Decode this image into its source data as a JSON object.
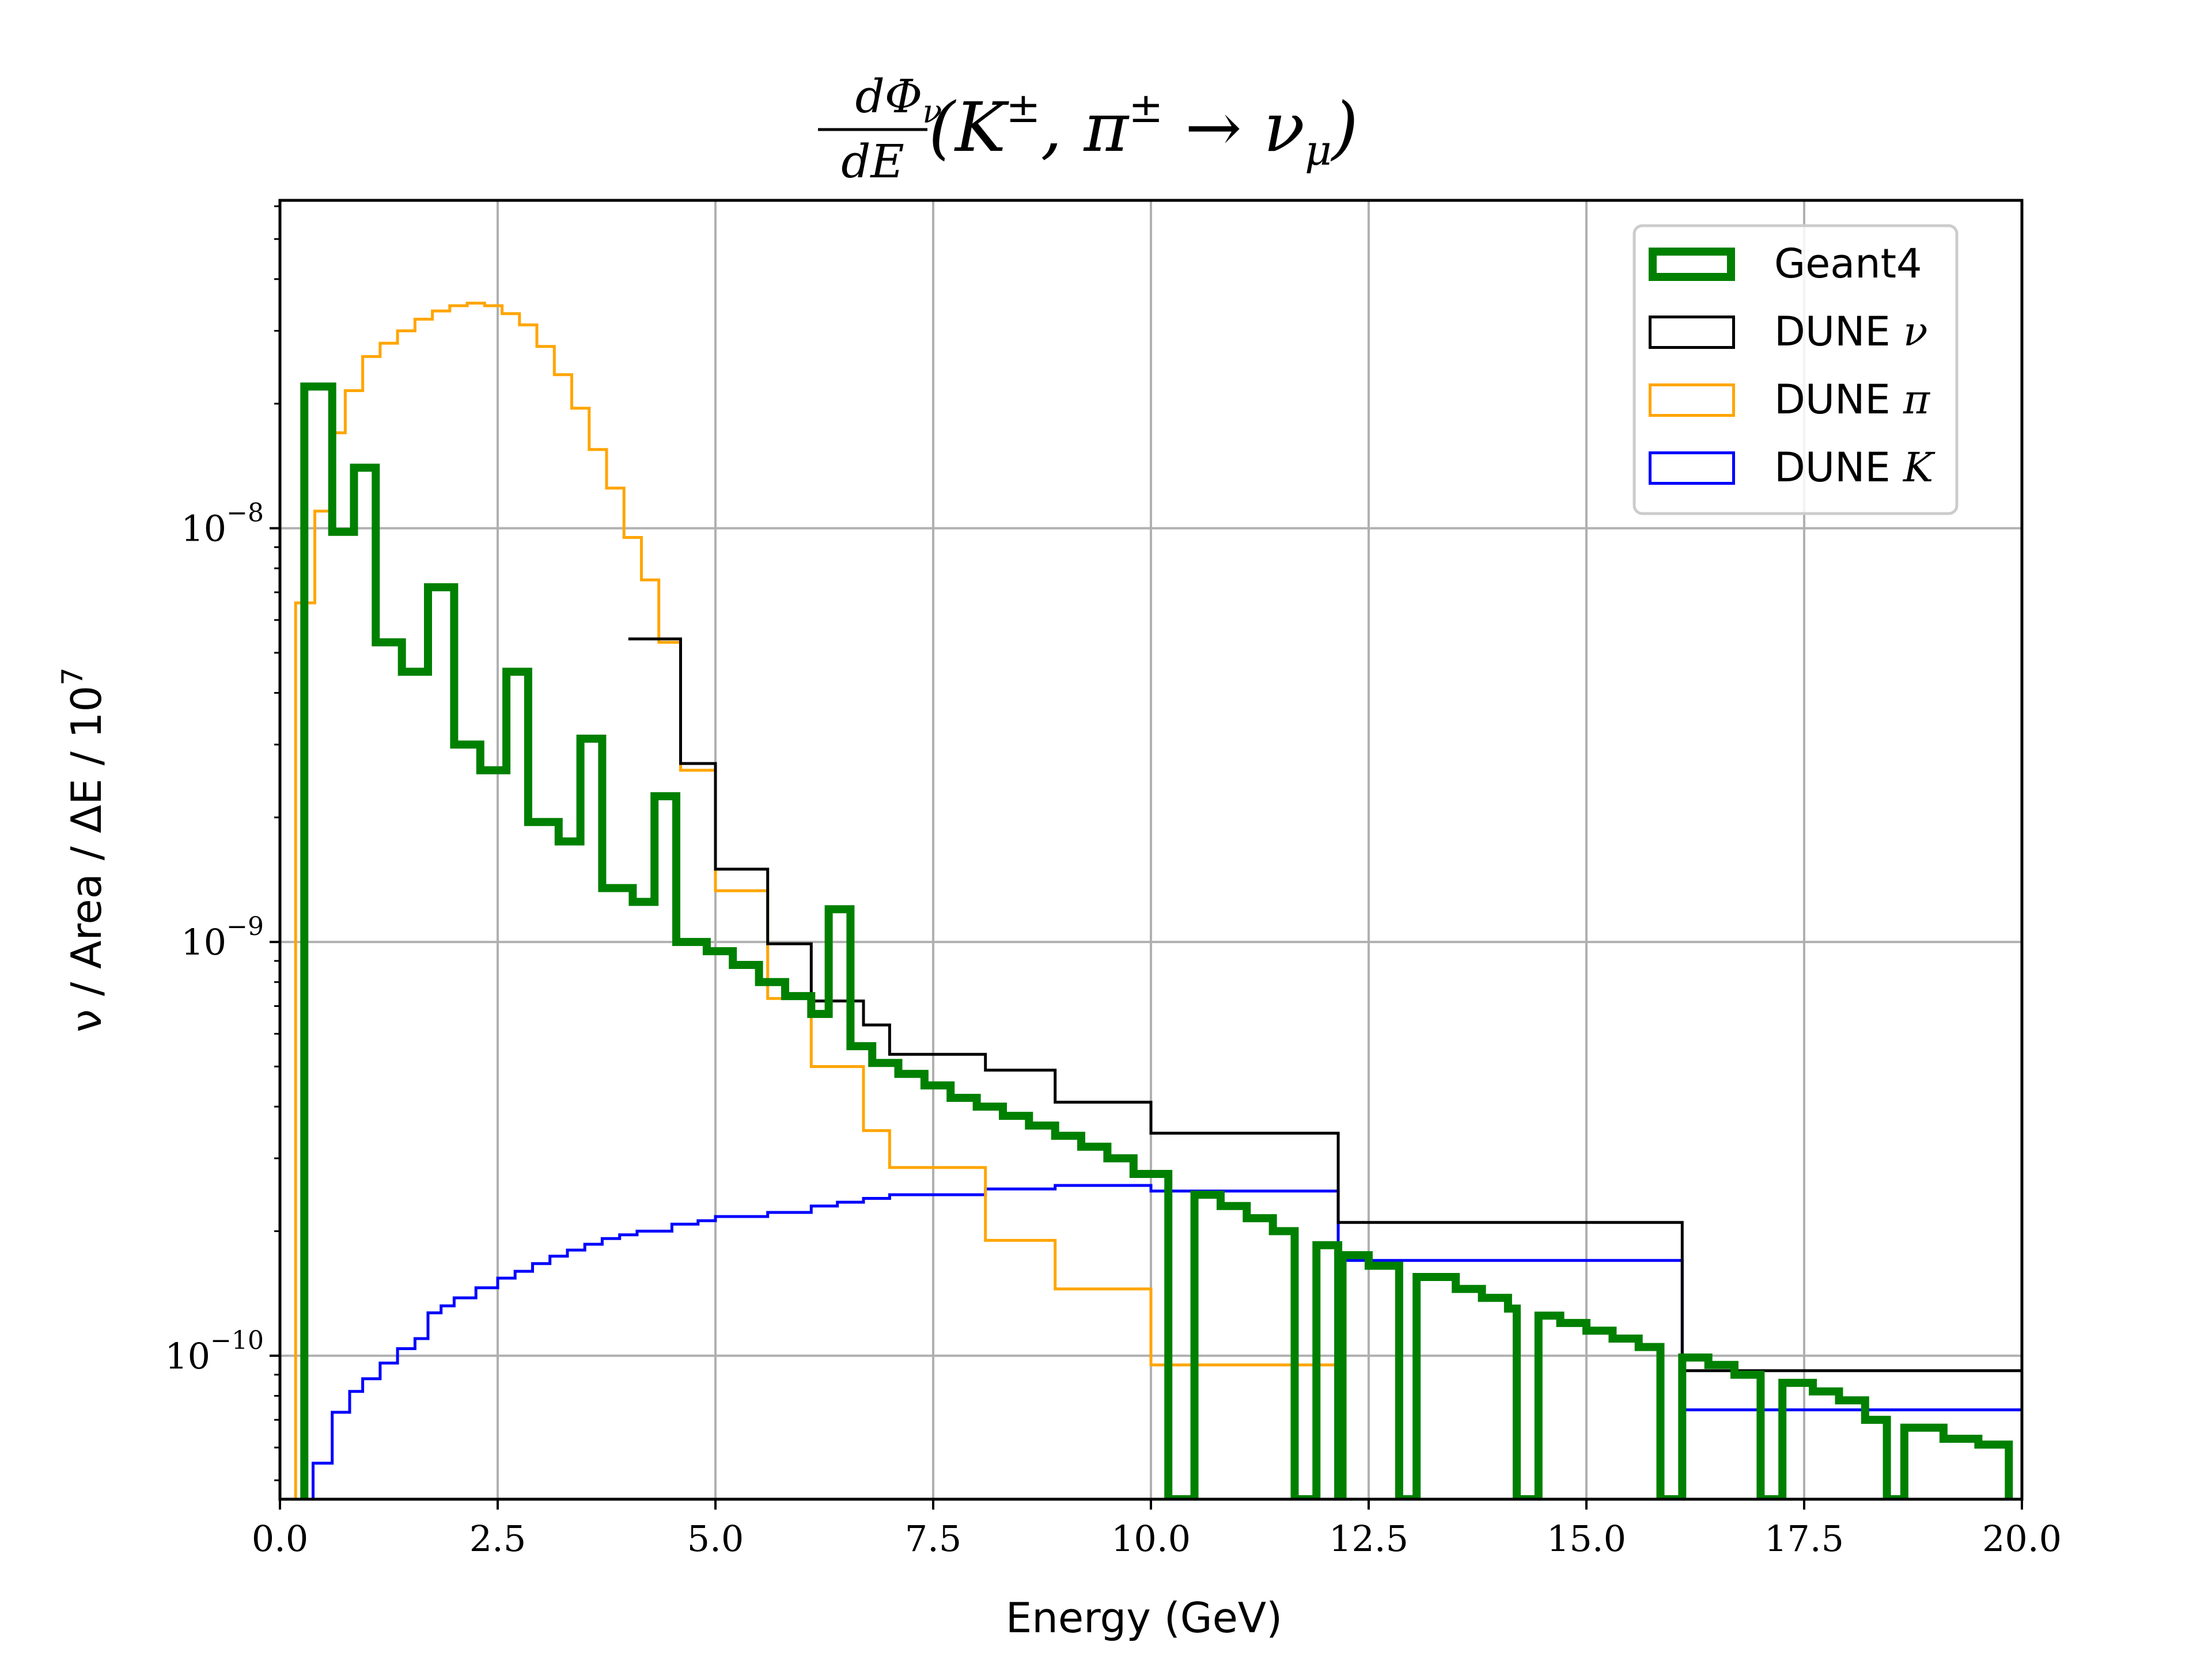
{
  "chart_data": {
    "type": "line",
    "title": {
      "frac_num": "dΦ",
      "frac_num_sub": "ν",
      "frac_den": "dE",
      "main": "(K",
      "main_sup": "±",
      "mid": ", π",
      "mid_sup": "±",
      "arrow": " → ν",
      "arrow_sub": "μ",
      "close": ")"
    },
    "xlabel": "Energy (GeV)",
    "ylabel": "ν / Area / ΔE / 10",
    "ylabel_sup": "7",
    "xlim": [
      0,
      20
    ],
    "ylim": [
      4.5e-11,
      6.2e-08
    ],
    "yscale": "log",
    "grid": true,
    "legend_position": "top-right",
    "xticks": [
      "0.0",
      "2.5",
      "5.0",
      "7.5",
      "10.0",
      "12.5",
      "15.0",
      "17.5",
      "20.0"
    ],
    "yticks": [
      {
        "value": 1e-08,
        "base": "10",
        "exp": "−8"
      },
      {
        "value": 1e-09,
        "base": "10",
        "exp": "−9"
      },
      {
        "value": 1e-10,
        "base": "10",
        "exp": "−10"
      }
    ],
    "series": [
      {
        "name": "Geant4",
        "legend_math": "",
        "color": "#008000",
        "width": 14,
        "points": [
          [
            0.28,
            4.5e-11
          ],
          [
            0.28,
            2.2e-08
          ],
          [
            0.6,
            2.2e-08
          ],
          [
            0.6,
            9.8e-09
          ],
          [
            0.85,
            9.8e-09
          ],
          [
            0.85,
            1.4e-08
          ],
          [
            1.1,
            1.4e-08
          ],
          [
            1.1,
            5.3e-09
          ],
          [
            1.4,
            5.3e-09
          ],
          [
            1.4,
            4.5e-09
          ],
          [
            1.7,
            4.5e-09
          ],
          [
            1.7,
            7.2e-09
          ],
          [
            2.0,
            7.2e-09
          ],
          [
            2.0,
            3e-09
          ],
          [
            2.3,
            3e-09
          ],
          [
            2.3,
            2.6e-09
          ],
          [
            2.6,
            2.6e-09
          ],
          [
            2.6,
            4.5e-09
          ],
          [
            2.85,
            4.5e-09
          ],
          [
            2.85,
            1.95e-09
          ],
          [
            3.2,
            1.95e-09
          ],
          [
            3.2,
            1.75e-09
          ],
          [
            3.45,
            1.75e-09
          ],
          [
            3.45,
            3.1e-09
          ],
          [
            3.7,
            3.1e-09
          ],
          [
            3.7,
            1.35e-09
          ],
          [
            4.05,
            1.35e-09
          ],
          [
            4.05,
            1.25e-09
          ],
          [
            4.3,
            1.25e-09
          ],
          [
            4.3,
            2.25e-09
          ],
          [
            4.55,
            2.25e-09
          ],
          [
            4.55,
            1e-09
          ],
          [
            4.9,
            1e-09
          ],
          [
            4.9,
            9.5e-10
          ],
          [
            5.2,
            9.5e-10
          ],
          [
            5.2,
            8.8e-10
          ],
          [
            5.5,
            8.8e-10
          ],
          [
            5.5,
            8e-10
          ],
          [
            5.8,
            8e-10
          ],
          [
            5.8,
            7.4e-10
          ],
          [
            6.1,
            7.4e-10
          ],
          [
            6.1,
            6.7e-10
          ],
          [
            6.3,
            6.7e-10
          ],
          [
            6.3,
            1.2e-09
          ],
          [
            6.55,
            1.2e-09
          ],
          [
            6.55,
            5.6e-10
          ],
          [
            6.8,
            5.6e-10
          ],
          [
            6.8,
            5.1e-10
          ],
          [
            7.1,
            5.1e-10
          ],
          [
            7.1,
            4.8e-10
          ],
          [
            7.4,
            4.8e-10
          ],
          [
            7.4,
            4.5e-10
          ],
          [
            7.7,
            4.5e-10
          ],
          [
            7.7,
            4.2e-10
          ],
          [
            8.0,
            4.2e-10
          ],
          [
            8.0,
            4e-10
          ],
          [
            8.3,
            4e-10
          ],
          [
            8.3,
            3.8e-10
          ],
          [
            8.6,
            3.8e-10
          ],
          [
            8.6,
            3.6e-10
          ],
          [
            8.9,
            3.6e-10
          ],
          [
            8.9,
            3.4e-10
          ],
          [
            9.2,
            3.4e-10
          ],
          [
            9.2,
            3.2e-10
          ],
          [
            9.5,
            3.2e-10
          ],
          [
            9.5,
            3e-10
          ],
          [
            9.8,
            3e-10
          ],
          [
            9.8,
            2.75e-10
          ],
          [
            10.2,
            2.75e-10
          ],
          [
            10.2,
            4.5e-11
          ],
          [
            10.5,
            4.5e-11
          ],
          [
            10.5,
            2.45e-10
          ],
          [
            10.8,
            2.45e-10
          ],
          [
            10.8,
            2.3e-10
          ],
          [
            11.1,
            2.3e-10
          ],
          [
            11.1,
            2.15e-10
          ],
          [
            11.4,
            2.15e-10
          ],
          [
            11.4,
            2e-10
          ],
          [
            11.65,
            2e-10
          ],
          [
            11.65,
            4.5e-11
          ],
          [
            11.9,
            4.5e-11
          ],
          [
            11.9,
            1.85e-10
          ],
          [
            12.15,
            1.85e-10
          ],
          [
            12.15,
            4.5e-11
          ],
          [
            12.2,
            4.5e-11
          ],
          [
            12.2,
            1.75e-10
          ],
          [
            12.5,
            1.75e-10
          ],
          [
            12.5,
            1.65e-10
          ],
          [
            12.85,
            1.65e-10
          ],
          [
            12.85,
            4.5e-11
          ],
          [
            13.05,
            4.5e-11
          ],
          [
            13.05,
            1.55e-10
          ],
          [
            13.5,
            1.55e-10
          ],
          [
            13.5,
            1.45e-10
          ],
          [
            13.8,
            1.45e-10
          ],
          [
            13.8,
            1.38e-10
          ],
          [
            14.1,
            1.38e-10
          ],
          [
            14.1,
            1.3e-10
          ],
          [
            14.2,
            1.3e-10
          ],
          [
            14.2,
            4.5e-11
          ],
          [
            14.45,
            4.5e-11
          ],
          [
            14.45,
            1.25e-10
          ],
          [
            14.7,
            1.25e-10
          ],
          [
            14.7,
            1.2e-10
          ],
          [
            15.0,
            1.2e-10
          ],
          [
            15.0,
            1.15e-10
          ],
          [
            15.3,
            1.15e-10
          ],
          [
            15.3,
            1.1e-10
          ],
          [
            15.6,
            1.1e-10
          ],
          [
            15.6,
            1.05e-10
          ],
          [
            15.85,
            1.05e-10
          ],
          [
            15.85,
            4.5e-11
          ],
          [
            16.1,
            4.5e-11
          ],
          [
            16.1,
            9.9e-11
          ],
          [
            16.4,
            9.9e-11
          ],
          [
            16.4,
            9.5e-11
          ],
          [
            16.7,
            9.5e-11
          ],
          [
            16.7,
            9e-11
          ],
          [
            17.0,
            9e-11
          ],
          [
            17.0,
            4.5e-11
          ],
          [
            17.25,
            4.5e-11
          ],
          [
            17.25,
            8.6e-11
          ],
          [
            17.6,
            8.6e-11
          ],
          [
            17.6,
            8.2e-11
          ],
          [
            17.9,
            8.2e-11
          ],
          [
            17.9,
            7.8e-11
          ],
          [
            18.2,
            7.8e-11
          ],
          [
            18.2,
            7e-11
          ],
          [
            18.45,
            7e-11
          ],
          [
            18.45,
            4.5e-11
          ],
          [
            18.65,
            4.5e-11
          ],
          [
            18.65,
            6.7e-11
          ],
          [
            19.1,
            6.7e-11
          ],
          [
            19.1,
            6.3e-11
          ],
          [
            19.5,
            6.3e-11
          ],
          [
            19.5,
            6.1e-11
          ],
          [
            19.85,
            6.1e-11
          ],
          [
            19.85,
            4.5e-11
          ]
        ]
      },
      {
        "name": "DUNE ",
        "legend_math": "ν",
        "color": "#000000",
        "width": 5,
        "points": [
          [
            4.0,
            5.4e-09
          ],
          [
            4.6,
            5.4e-09
          ],
          [
            4.6,
            2.7e-09
          ],
          [
            5.0,
            2.7e-09
          ],
          [
            5.0,
            1.5e-09
          ],
          [
            5.6,
            1.5e-09
          ],
          [
            5.6,
            9.9e-10
          ],
          [
            6.1,
            9.9e-10
          ],
          [
            6.1,
            7.2e-10
          ],
          [
            6.7,
            7.2e-10
          ],
          [
            6.7,
            6.3e-10
          ],
          [
            7.0,
            6.3e-10
          ],
          [
            7.0,
            5.35e-10
          ],
          [
            8.1,
            5.35e-10
          ],
          [
            8.1,
            4.9e-10
          ],
          [
            8.9,
            4.9e-10
          ],
          [
            8.9,
            4.1e-10
          ],
          [
            10.0,
            4.1e-10
          ],
          [
            10.0,
            3.45e-10
          ],
          [
            12.15,
            3.45e-10
          ],
          [
            12.15,
            2.1e-10
          ],
          [
            16.1,
            2.1e-10
          ],
          [
            16.1,
            9.2e-11
          ],
          [
            20.0,
            9.2e-11
          ]
        ]
      },
      {
        "name": "DUNE ",
        "legend_math": "π",
        "color": "#FFA500",
        "width": 5,
        "points": [
          [
            0.18,
            4.5e-11
          ],
          [
            0.18,
            6.6e-09
          ],
          [
            0.4,
            6.6e-09
          ],
          [
            0.4,
            1.1e-08
          ],
          [
            0.6,
            1.1e-08
          ],
          [
            0.6,
            1.7e-08
          ],
          [
            0.75,
            1.7e-08
          ],
          [
            0.75,
            2.15e-08
          ],
          [
            0.95,
            2.15e-08
          ],
          [
            0.95,
            2.6e-08
          ],
          [
            1.15,
            2.6e-08
          ],
          [
            1.15,
            2.8e-08
          ],
          [
            1.35,
            2.8e-08
          ],
          [
            1.35,
            3e-08
          ],
          [
            1.55,
            3e-08
          ],
          [
            1.55,
            3.2e-08
          ],
          [
            1.75,
            3.2e-08
          ],
          [
            1.75,
            3.35e-08
          ],
          [
            1.95,
            3.35e-08
          ],
          [
            1.95,
            3.45e-08
          ],
          [
            2.15,
            3.45e-08
          ],
          [
            2.15,
            3.5e-08
          ],
          [
            2.35,
            3.5e-08
          ],
          [
            2.35,
            3.45e-08
          ],
          [
            2.55,
            3.45e-08
          ],
          [
            2.55,
            3.3e-08
          ],
          [
            2.75,
            3.3e-08
          ],
          [
            2.75,
            3.1e-08
          ],
          [
            2.95,
            3.1e-08
          ],
          [
            2.95,
            2.75e-08
          ],
          [
            3.15,
            2.75e-08
          ],
          [
            3.15,
            2.35e-08
          ],
          [
            3.35,
            2.35e-08
          ],
          [
            3.35,
            1.95e-08
          ],
          [
            3.55,
            1.95e-08
          ],
          [
            3.55,
            1.55e-08
          ],
          [
            3.75,
            1.55e-08
          ],
          [
            3.75,
            1.25e-08
          ],
          [
            3.95,
            1.25e-08
          ],
          [
            3.95,
            9.5e-09
          ],
          [
            4.15,
            9.5e-09
          ],
          [
            4.15,
            7.5e-09
          ],
          [
            4.35,
            7.5e-09
          ],
          [
            4.35,
            5.3e-09
          ],
          [
            4.6,
            5.3e-09
          ],
          [
            4.6,
            2.6e-09
          ],
          [
            5.0,
            2.6e-09
          ],
          [
            5.0,
            1.33e-09
          ],
          [
            5.6,
            1.33e-09
          ],
          [
            5.6,
            7.3e-10
          ],
          [
            6.1,
            7.3e-10
          ],
          [
            6.1,
            5e-10
          ],
          [
            6.7,
            5e-10
          ],
          [
            6.7,
            3.5e-10
          ],
          [
            7.0,
            3.5e-10
          ],
          [
            7.0,
            2.85e-10
          ],
          [
            8.1,
            2.85e-10
          ],
          [
            8.1,
            1.9e-10
          ],
          [
            8.9,
            1.9e-10
          ],
          [
            8.9,
            1.45e-10
          ],
          [
            10.0,
            1.45e-10
          ],
          [
            10.0,
            9.5e-11
          ],
          [
            12.15,
            9.5e-11
          ],
          [
            12.15,
            4.5e-11
          ]
        ]
      },
      {
        "name": "DUNE ",
        "legend_math": "K",
        "color": "#0000FF",
        "width": 5,
        "points": [
          [
            0.38,
            4.5e-11
          ],
          [
            0.38,
            5.5e-11
          ],
          [
            0.6,
            5.5e-11
          ],
          [
            0.6,
            7.3e-11
          ],
          [
            0.8,
            7.3e-11
          ],
          [
            0.8,
            8.2e-11
          ],
          [
            0.95,
            8.2e-11
          ],
          [
            0.95,
            8.8e-11
          ],
          [
            1.15,
            8.8e-11
          ],
          [
            1.15,
            9.6e-11
          ],
          [
            1.35,
            9.6e-11
          ],
          [
            1.35,
            1.04e-10
          ],
          [
            1.55,
            1.04e-10
          ],
          [
            1.55,
            1.1e-10
          ],
          [
            1.7,
            1.1e-10
          ],
          [
            1.7,
            1.27e-10
          ],
          [
            1.85,
            1.27e-10
          ],
          [
            1.85,
            1.32e-10
          ],
          [
            2.0,
            1.32e-10
          ],
          [
            2.0,
            1.38e-10
          ],
          [
            2.25,
            1.38e-10
          ],
          [
            2.25,
            1.46e-10
          ],
          [
            2.5,
            1.46e-10
          ],
          [
            2.5,
            1.54e-10
          ],
          [
            2.7,
            1.54e-10
          ],
          [
            2.7,
            1.6e-10
          ],
          [
            2.9,
            1.6e-10
          ],
          [
            2.9,
            1.67e-10
          ],
          [
            3.1,
            1.67e-10
          ],
          [
            3.1,
            1.74e-10
          ],
          [
            3.3,
            1.74e-10
          ],
          [
            3.3,
            1.8e-10
          ],
          [
            3.5,
            1.8e-10
          ],
          [
            3.5,
            1.86e-10
          ],
          [
            3.7,
            1.86e-10
          ],
          [
            3.7,
            1.92e-10
          ],
          [
            3.9,
            1.92e-10
          ],
          [
            3.9,
            1.96e-10
          ],
          [
            4.1,
            1.96e-10
          ],
          [
            4.1,
            2e-10
          ],
          [
            4.5,
            2e-10
          ],
          [
            4.5,
            2.08e-10
          ],
          [
            4.8,
            2.08e-10
          ],
          [
            4.8,
            2.12e-10
          ],
          [
            5.0,
            2.12e-10
          ],
          [
            5.0,
            2.17e-10
          ],
          [
            5.6,
            2.17e-10
          ],
          [
            5.6,
            2.22e-10
          ],
          [
            6.1,
            2.22e-10
          ],
          [
            6.1,
            2.3e-10
          ],
          [
            6.4,
            2.3e-10
          ],
          [
            6.4,
            2.35e-10
          ],
          [
            6.7,
            2.35e-10
          ],
          [
            6.7,
            2.4e-10
          ],
          [
            7.0,
            2.4e-10
          ],
          [
            7.0,
            2.45e-10
          ],
          [
            8.1,
            2.45e-10
          ],
          [
            8.1,
            2.53e-10
          ],
          [
            8.9,
            2.53e-10
          ],
          [
            8.9,
            2.58e-10
          ],
          [
            10.0,
            2.58e-10
          ],
          [
            10.0,
            2.5e-10
          ],
          [
            12.15,
            2.5e-10
          ],
          [
            12.15,
            1.7e-10
          ],
          [
            16.1,
            1.7e-10
          ],
          [
            16.1,
            7.4e-11
          ],
          [
            20.0,
            7.4e-11
          ]
        ]
      }
    ]
  }
}
